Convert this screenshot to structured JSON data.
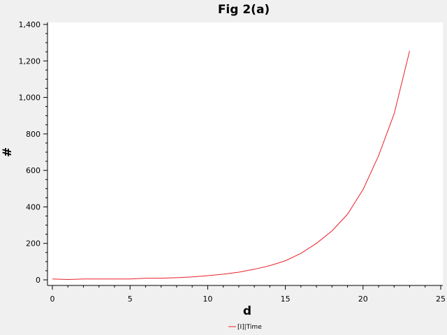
{
  "chart_data": {
    "type": "line",
    "title": "Fig 2(a)",
    "xlabel": "d",
    "ylabel": "#",
    "xlim": [
      0,
      25
    ],
    "ylim": [
      0,
      1400
    ],
    "x_ticks": [
      {
        "value": 0,
        "label": "0"
      },
      {
        "value": 5,
        "label": "5"
      },
      {
        "value": 10,
        "label": "10"
      },
      {
        "value": 15,
        "label": "15"
      },
      {
        "value": 20,
        "label": "20"
      },
      {
        "value": 25,
        "label": "25"
      }
    ],
    "y_ticks": [
      {
        "value": 0,
        "label": "0"
      },
      {
        "value": 200,
        "label": "200"
      },
      {
        "value": 400,
        "label": "400"
      },
      {
        "value": 600,
        "label": "600"
      },
      {
        "value": 800,
        "label": "800"
      },
      {
        "value": 1000,
        "label": "1,000"
      },
      {
        "value": 1200,
        "label": "1,200"
      },
      {
        "value": 1400,
        "label": "1,400"
      }
    ],
    "grid": false,
    "legend_position": "bottom-center",
    "series": [
      {
        "name": "[I]|Time",
        "color": "#e8202a",
        "x": [
          0,
          1,
          2,
          3,
          4,
          5,
          6,
          7,
          8,
          9,
          10,
          11,
          12,
          13,
          14,
          15,
          16,
          17,
          18,
          19,
          20,
          21,
          22,
          23
        ],
        "y": [
          5,
          2,
          5,
          5,
          5,
          5,
          9,
          9,
          12,
          16,
          23,
          31,
          42,
          58,
          78,
          105,
          145,
          200,
          268,
          360,
          495,
          680,
          910,
          1255
        ]
      }
    ]
  }
}
